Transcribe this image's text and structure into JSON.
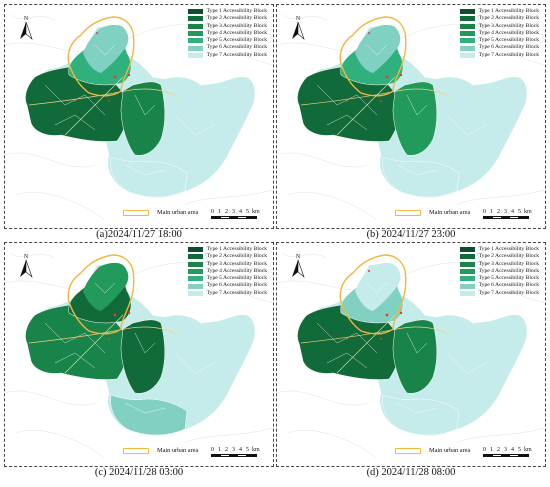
{
  "panels": [
    {
      "id": "a",
      "caption": "(a)2024/11/27 18:00",
      "variant": "a"
    },
    {
      "id": "b",
      "caption": "(b) 2024/11/27 23:00",
      "variant": "b"
    },
    {
      "id": "c",
      "caption": "(c) 2024/11/28 03:00",
      "variant": "c"
    },
    {
      "id": "d",
      "caption": "(d) 2024/11/28 08:00",
      "variant": "d"
    }
  ],
  "legend": [
    {
      "label": "Type 1 Accessibility Block",
      "color": "#0c4f2c"
    },
    {
      "label": "Type 2 Accessibility Block",
      "color": "#116a3a"
    },
    {
      "label": "Type 3 Accessibility Block",
      "color": "#18844a"
    },
    {
      "label": "Type 4 Accessibility Block",
      "color": "#229a5b"
    },
    {
      "label": "Type 5 Accessibility Block",
      "color": "#2fb07c"
    },
    {
      "label": "Type 6 Accessibility Block",
      "color": "#80d1c2"
    },
    {
      "label": "Type 7 Accessibility Block",
      "color": "#c5ebeb"
    }
  ],
  "main_urban_area_label": "Main urban area",
  "main_urban_area_color": "#f3b640",
  "scale_bar": {
    "ticks": [
      "0",
      "1",
      "2",
      "3",
      "4",
      "5"
    ],
    "unit": "km"
  },
  "north_label": "N"
}
